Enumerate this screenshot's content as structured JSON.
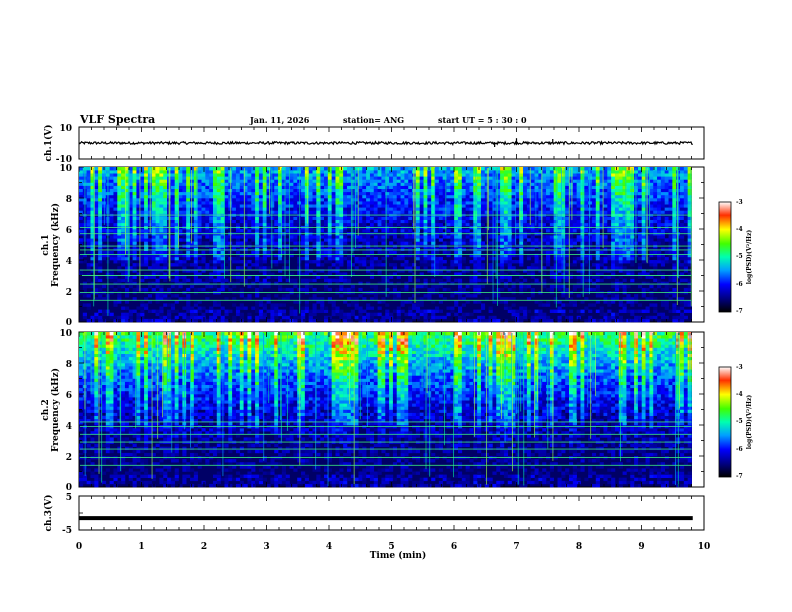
{
  "header": {
    "title": "VLF Spectra",
    "date": "Jan. 11, 2026",
    "station": "station= ANG",
    "start": "start  UT =   5 : 30 : 0"
  },
  "chart_data": [
    {
      "type": "line",
      "name": "ch1-waveform",
      "ylabel": "ch.1(V)",
      "ylim": [
        -10,
        10
      ],
      "ytick_labels": [
        "10",
        "-10"
      ],
      "xlim": [
        0,
        10
      ],
      "baseline": 0,
      "spikes": [
        {
          "x": 5.98,
          "dy": -1.5
        },
        {
          "x": 6.65,
          "dy": -2.5
        },
        {
          "x": 7.0,
          "dy": 3.0
        },
        {
          "x": 7.58,
          "dy": 2.5
        }
      ]
    },
    {
      "type": "heatmap",
      "name": "ch1-spectrogram",
      "ylabel": "ch.1",
      "ylabel2": "Frequency (kHz)",
      "ylim": [
        0,
        10
      ],
      "xlim": [
        0,
        9.8
      ],
      "ytick_labels": [
        "0",
        "2",
        "4",
        "6",
        "8",
        "10"
      ],
      "colorbar_label": "log(PSD)(V²/Hz)",
      "colorbar_range": [
        -7,
        -3
      ],
      "colorbar_ticks": [
        "-3",
        "-4",
        "-5",
        "-6",
        "-7"
      ],
      "lines_khz": [
        1.4,
        1.9,
        2.45,
        3.0,
        3.35,
        4.35,
        4.65,
        4.9,
        5.7,
        6.1,
        6.9
      ]
    },
    {
      "type": "heatmap",
      "name": "ch2-spectrogram",
      "ylabel": "ch.2",
      "ylabel2": "Frequency (kHz)",
      "ylim": [
        0,
        10
      ],
      "xlim": [
        0,
        9.8
      ],
      "ytick_labels": [
        "0",
        "2",
        "4",
        "6",
        "8",
        "10"
      ],
      "colorbar_label": "log(PSD)(V²/Hz)",
      "colorbar_range": [
        -7,
        -3
      ],
      "colorbar_ticks": [
        "-3",
        "-4",
        "-5",
        "-6",
        "-7"
      ],
      "lines_khz": [
        1.4,
        1.9,
        2.45,
        2.9,
        3.4,
        3.9,
        4.2
      ]
    },
    {
      "type": "line",
      "name": "ch3-waveform",
      "ylabel": "ch.3(V)",
      "ylim": [
        -5,
        5
      ],
      "ytick_labels": [
        "5",
        "0",
        "-5"
      ],
      "xlim": [
        0,
        10
      ],
      "baseline": -1.5
    }
  ],
  "xaxis": {
    "label": "Time (min)",
    "ticks": [
      "0",
      "1",
      "2",
      "3",
      "4",
      "5",
      "6",
      "7",
      "8",
      "9",
      "10"
    ]
  },
  "colors": {
    "spectrogram_background": "#000066",
    "line": "#000000"
  }
}
